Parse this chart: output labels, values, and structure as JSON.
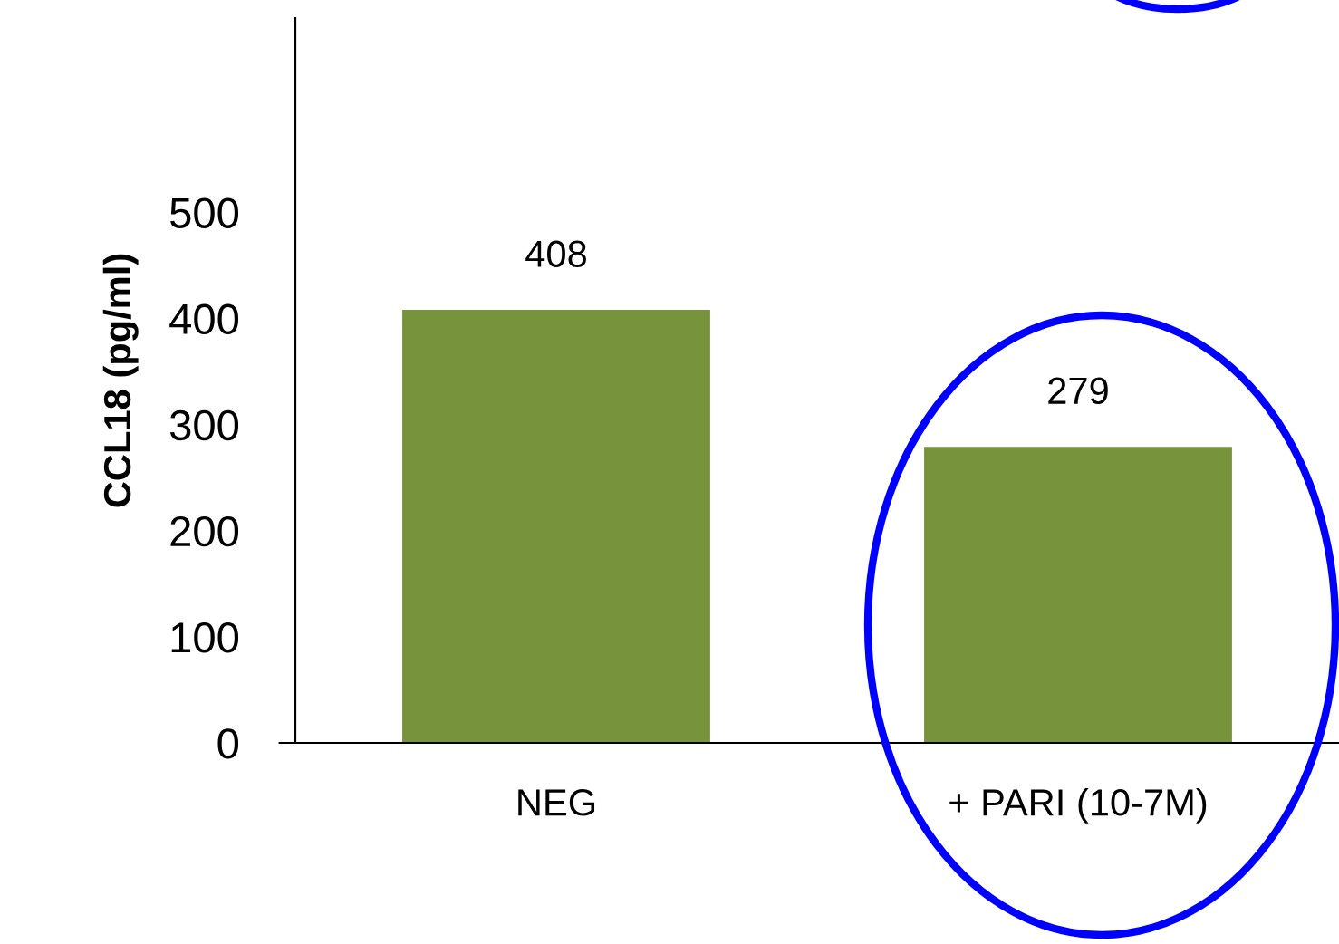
{
  "chart_data": {
    "type": "bar",
    "ylabel": "CCL18 (pg/ml)",
    "categories": [
      "NEG",
      "+ PARI (10-7M)"
    ],
    "values": [
      408,
      279
    ],
    "color": "#77933c",
    "ylim": [
      0,
      683
    ],
    "yticks": [
      0,
      100,
      200,
      300,
      400,
      500
    ],
    "data_labels": true,
    "grid": false,
    "legend": false
  }
}
